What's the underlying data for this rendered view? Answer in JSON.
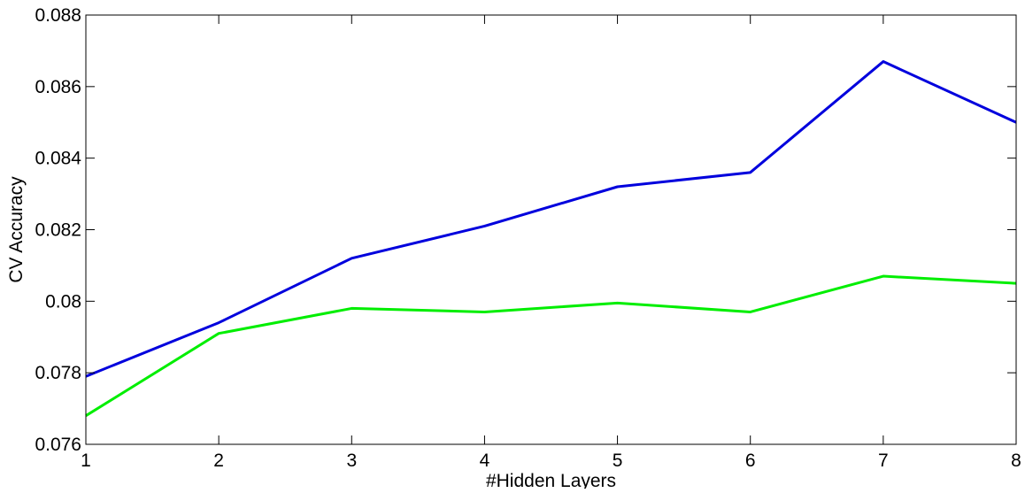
{
  "chart_data": {
    "type": "line",
    "title": "",
    "xlabel": "#Hidden Layers",
    "ylabel": "CV Accuracy",
    "x": [
      1,
      2,
      3,
      4,
      5,
      6,
      7,
      8
    ],
    "xlim": [
      1,
      8
    ],
    "ylim": [
      0.076,
      0.088
    ],
    "xticks": [
      1,
      2,
      3,
      4,
      5,
      6,
      7,
      8
    ],
    "xtick_labels": [
      "1",
      "2",
      "3",
      "4",
      "5",
      "6",
      "7",
      "8"
    ],
    "yticks": [
      0.076,
      0.078,
      0.08,
      0.082,
      0.084,
      0.086,
      0.088
    ],
    "ytick_labels": [
      "0.076",
      "0.078",
      "0.08",
      "0.082",
      "0.084",
      "0.086",
      "0.088"
    ],
    "grid": false,
    "legend": "none",
    "series": [
      {
        "color": "#0000dd",
        "values": [
          0.0779,
          0.0794,
          0.0812,
          0.0821,
          0.0832,
          0.0836,
          0.0867,
          0.085
        ]
      },
      {
        "color": "#00ee00",
        "values": [
          0.0768,
          0.0791,
          0.0798,
          0.0797,
          0.07995,
          0.0797,
          0.0807,
          0.0805
        ]
      }
    ]
  }
}
